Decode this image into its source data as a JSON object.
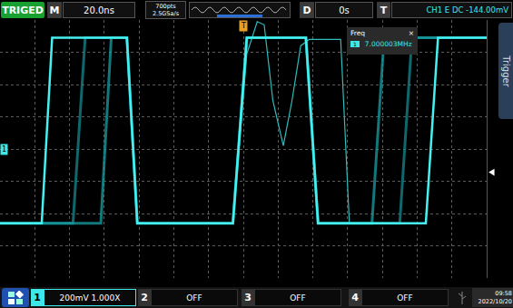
{
  "screen": {
    "status": "TRIGED",
    "timebase_label": "M",
    "timebase": "20.0ns",
    "memory_depth": "700pts",
    "sample_rate": "2.5GSa/s",
    "delay_label": "D",
    "delay": "0s",
    "trigger_label": "T",
    "trigger_info": "CH1 E DC -144.00mV",
    "measure": {
      "title": "Freq",
      "close": "×",
      "channel": "1",
      "value": "7.000003MHz"
    },
    "side_tab": "Trigger",
    "channels": [
      {
        "label": "1",
        "setting": "200mV 1.000X"
      },
      {
        "label": "2",
        "setting": "OFF"
      },
      {
        "label": "3",
        "setting": "OFF"
      },
      {
        "label": "4",
        "setting": "OFF"
      }
    ],
    "time": "09:58",
    "date": "2022/10/20"
  },
  "chart_data": {
    "type": "line",
    "xlim": [
      -140,
      140
    ],
    "ylim": [
      -800,
      800
    ],
    "xticks": [
      -140,
      -120,
      -100,
      -80,
      -60,
      -40,
      -20,
      0,
      20,
      40,
      60,
      80,
      100,
      120,
      140
    ],
    "yticks": [
      -800,
      -600,
      -400,
      -200,
      0,
      200,
      400,
      600,
      800
    ],
    "grid": true,
    "tick_labels": false,
    "trigger_level": -144,
    "trigger_position": 0,
    "channel_offset": 0,
    "channel_marker": "1",
    "trigger_marker": "T",
    "series": [
      {
        "color": "#148a90",
        "x": [
          -140,
          -98,
          -91,
          -67,
          -61,
          -6,
          2,
          36,
          43,
          90,
          97,
          140
        ],
        "values": [
          -460,
          -460,
          690,
          690,
          -460,
          -460,
          690,
          690,
          -460,
          -460,
          690,
          690
        ]
      },
      {
        "color": "#18a0a6",
        "x": [
          -140,
          -82,
          -76,
          -67,
          -61,
          -6,
          2,
          36,
          43,
          74,
          81,
          140
        ],
        "values": [
          -460,
          -460,
          690,
          690,
          -460,
          -460,
          690,
          690,
          -460,
          -460,
          690,
          690
        ]
      },
      {
        "color": "#2fbcbc",
        "x": [
          -6,
          2,
          8,
          12,
          17,
          23,
          28,
          33,
          38,
          56,
          61,
          80
        ],
        "values": [
          -460,
          590,
          790,
          770,
          300,
          20,
          300,
          640,
          680,
          680,
          -460,
          -460
        ]
      },
      {
        "color": "#46f0f0",
        "x": [
          -140,
          -116,
          -110,
          -67,
          -61,
          -6,
          2,
          36,
          43,
          105,
          112,
          140
        ],
        "values": [
          -460,
          -460,
          690,
          690,
          -460,
          -460,
          690,
          690,
          -460,
          -460,
          690,
          690
        ]
      }
    ]
  }
}
